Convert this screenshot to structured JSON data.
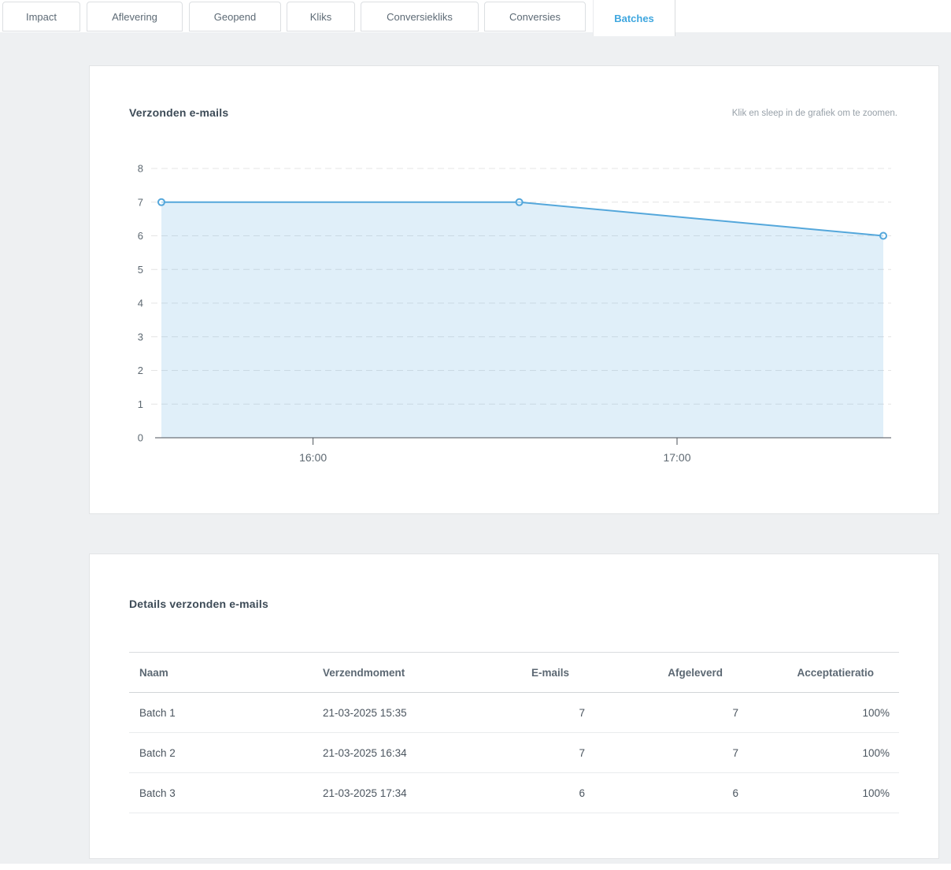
{
  "tabs": {
    "items": [
      {
        "label": "Impact",
        "active": false
      },
      {
        "label": "Aflevering",
        "active": false
      },
      {
        "label": "Geopend",
        "active": false
      },
      {
        "label": "Kliks",
        "active": false
      },
      {
        "label": "Conversiekliks",
        "active": false
      },
      {
        "label": "Conversies",
        "active": false
      },
      {
        "label": "Batches",
        "active": true
      }
    ]
  },
  "chart_panel": {
    "title": "Verzonden e-mails",
    "hint": "Klik en sleep in de grafiek om te zoomen."
  },
  "chart_data": {
    "type": "area",
    "title": "Verzonden e-mails",
    "x": [
      "15:35",
      "16:34",
      "17:34"
    ],
    "series": [
      {
        "name": "Verzonden e-mails",
        "values": [
          7,
          7,
          6
        ]
      }
    ],
    "x_tick_labels": [
      "16:00",
      "17:00"
    ],
    "y_ticks": [
      0,
      1,
      2,
      3,
      4,
      5,
      6,
      7,
      8
    ],
    "ylim": [
      0,
      8
    ],
    "grid": "horizontal-dashed",
    "legend": "none",
    "colors": {
      "line": "#54a7db",
      "fill": "rgba(84,167,219,0.18)",
      "marker_fill": "#ffffff",
      "grid": "#e4e4e4",
      "axis": "#4b5259",
      "tick_label": "#5d6871"
    }
  },
  "table_panel": {
    "title": "Details verzonden e-mails",
    "columns": [
      "Naam",
      "Verzendmoment",
      "E-mails",
      "Afgeleverd",
      "Acceptatieratio"
    ],
    "rows": [
      {
        "naam": "Batch 1",
        "verzendmoment": "21-03-2025 15:35",
        "emails": "7",
        "afgeleverd": "7",
        "acceptatieratio": "100%"
      },
      {
        "naam": "Batch 2",
        "verzendmoment": "21-03-2025 16:34",
        "emails": "7",
        "afgeleverd": "7",
        "acceptatieratio": "100%"
      },
      {
        "naam": "Batch 3",
        "verzendmoment": "21-03-2025 17:34",
        "emails": "6",
        "afgeleverd": "6",
        "acceptatieratio": "100%"
      }
    ]
  }
}
